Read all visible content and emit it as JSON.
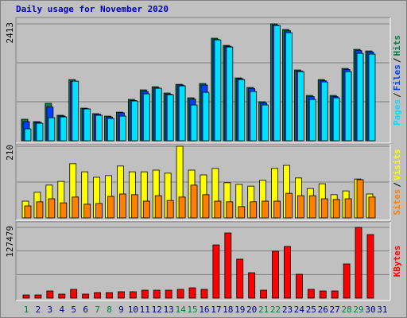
{
  "title": "Daily usage for November 2020",
  "separator": "/",
  "categories": [
    "1",
    "2",
    "3",
    "4",
    "5",
    "6",
    "7",
    "8",
    "9",
    "10",
    "11",
    "12",
    "13",
    "14",
    "15",
    "16",
    "17",
    "18",
    "19",
    "20",
    "21",
    "22",
    "23",
    "24",
    "25",
    "26",
    "27",
    "28",
    "29",
    "30",
    "31"
  ],
  "chart_data": [
    {
      "type": "bar",
      "ylim": [
        0,
        2413
      ],
      "yticks": [
        2413
      ],
      "grid": true,
      "series": [
        {
          "name": "Hits",
          "color": "#008040",
          "values": [
            443,
            394,
            771,
            525,
            1263,
            672,
            558,
            508,
            590,
            853,
            1050,
            1115,
            984,
            1164,
            886,
            1181,
            2116,
            1968,
            1296,
            1099,
            804,
            2413,
            2296,
            1460,
            935,
            1263,
            935,
            1492,
            1886,
            1853,
            null
          ]
        },
        {
          "name": "Files",
          "color": "#0040ff",
          "values": [
            394,
            380,
            700,
            510,
            1230,
            660,
            545,
            490,
            575,
            830,
            1020,
            1090,
            960,
            1150,
            860,
            1150,
            2090,
            1950,
            1280,
            1080,
            780,
            2390,
            2270,
            1440,
            910,
            1240,
            910,
            1470,
            1860,
            1830,
            null
          ]
        },
        {
          "name": "Pages",
          "color": "#00e0ff",
          "values": [
            246,
            361,
            476,
            492,
            1230,
            656,
            525,
            459,
            508,
            820,
            968,
            1082,
            951,
            1132,
            738,
            1000,
            2083,
            1935,
            1263,
            1017,
            738,
            2379,
            2230,
            1427,
            853,
            1214,
            886,
            1427,
            1804,
            1788,
            null
          ]
        }
      ]
    },
    {
      "type": "bar",
      "ylim": [
        0,
        210
      ],
      "yticks": [
        210
      ],
      "grid": true,
      "series": [
        {
          "name": "Visits",
          "color": "#ffff00",
          "values": [
            49,
            75,
            96,
            107,
            159,
            135,
            119,
            124,
            152,
            135,
            135,
            140,
            131,
            210,
            140,
            126,
            145,
            103,
            98,
            93,
            110,
            145,
            154,
            117,
            86,
            100,
            68,
            79,
            114,
            70,
            null
          ]
        },
        {
          "name": "Sites",
          "color": "#ff8000",
          "values": [
            35,
            47,
            56,
            44,
            61,
            40,
            42,
            63,
            70,
            68,
            49,
            65,
            51,
            61,
            96,
            68,
            49,
            47,
            33,
            47,
            49,
            49,
            72,
            65,
            65,
            56,
            54,
            56,
            112,
            61,
            null
          ]
        }
      ]
    },
    {
      "type": "bar",
      "ylim": [
        0,
        127479
      ],
      "yticks": [
        127479
      ],
      "grid": true,
      "series": [
        {
          "name": "KBytes",
          "color": "#ff0000",
          "values": [
            5700,
            5700,
            12900,
            7200,
            15800,
            7200,
            10000,
            10000,
            11500,
            11500,
            14300,
            14300,
            14300,
            15800,
            18600,
            15800,
            95900,
            117400,
            70200,
            45800,
            14300,
            84500,
            93100,
            43000,
            15800,
            12900,
            12900,
            61600,
            127479,
            114500,
            null
          ]
        }
      ]
    }
  ]
}
